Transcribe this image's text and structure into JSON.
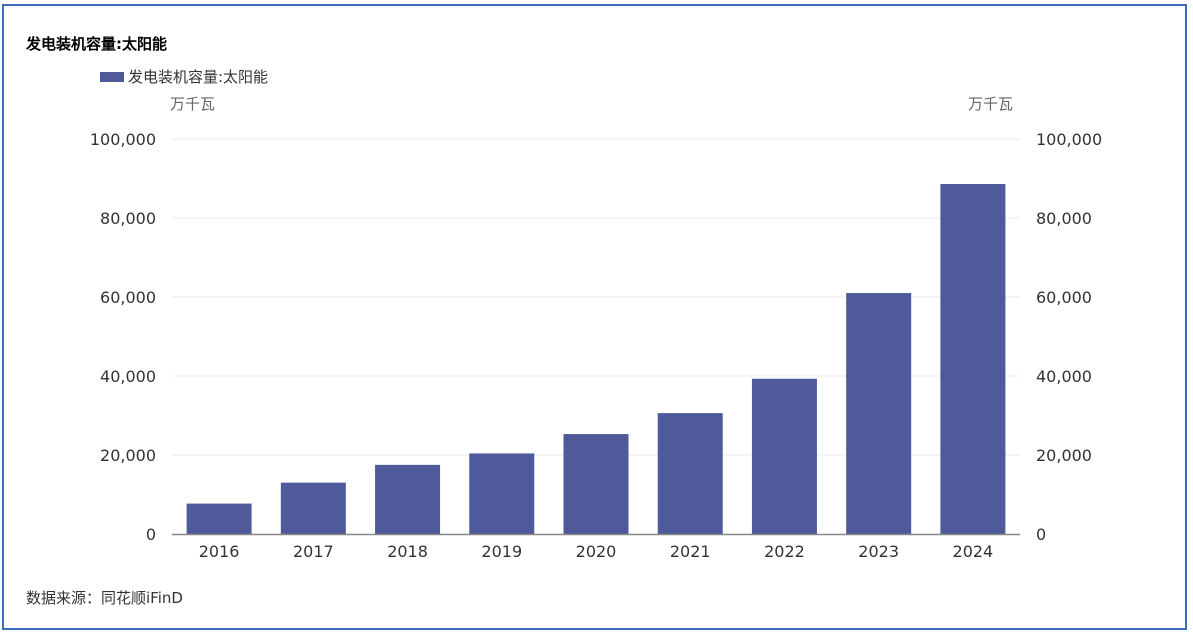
{
  "chart_data": {
    "type": "bar",
    "title": "发电装机容量:太阳能",
    "legend_position": "top-left",
    "grid": true,
    "categories": [
      "2016",
      "2017",
      "2018",
      "2019",
      "2020",
      "2021",
      "2022",
      "2023",
      "2024"
    ],
    "series": [
      {
        "name": "发电装机容量:太阳能",
        "values": [
          7700,
          13000,
          17500,
          20400,
          25300,
          30600,
          39300,
          61000,
          88600
        ]
      }
    ],
    "ylim": [
      0,
      100000
    ],
    "yticks": [
      "0",
      "20,000",
      "40,000",
      "60,000",
      "80,000",
      "100,000"
    ],
    "y2lim": [
      0,
      100000
    ],
    "y2ticks": [
      "0",
      "20,000",
      "40,000",
      "60,000",
      "80,000",
      "100,000"
    ],
    "y_unit_left": "万千瓦",
    "y_unit_right": "万千瓦"
  },
  "source": "数据来源：同花顺iFinD",
  "colors": {
    "bar": "#4e5a9a",
    "frame": "#3b6dbd",
    "grid": "#ebebeb",
    "axis": "#888888"
  }
}
